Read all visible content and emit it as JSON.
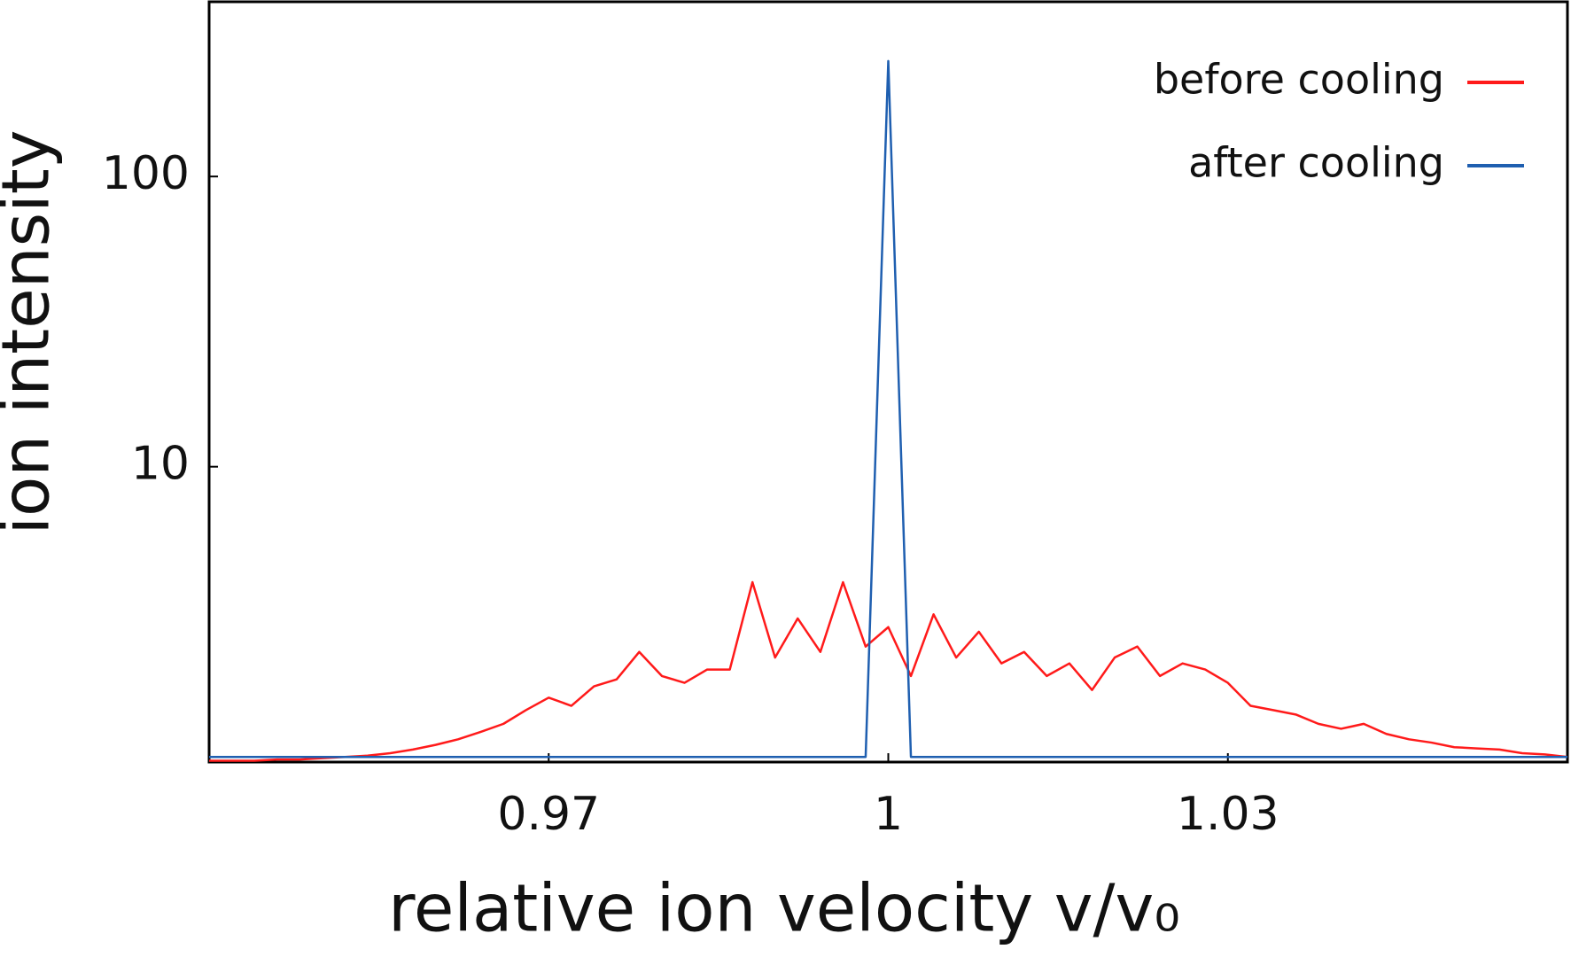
{
  "chart_data": {
    "type": "line",
    "xlabel": "relative ion velocity v/v₀",
    "ylabel": "ion intensity",
    "x": [
      0.94,
      0.942,
      0.944,
      0.946,
      0.948,
      0.95,
      0.952,
      0.954,
      0.956,
      0.958,
      0.96,
      0.962,
      0.964,
      0.966,
      0.968,
      0.97,
      0.972,
      0.974,
      0.976,
      0.978,
      0.98,
      0.982,
      0.984,
      0.986,
      0.988,
      0.99,
      0.992,
      0.994,
      0.996,
      0.998,
      1.0,
      1.002,
      1.004,
      1.006,
      1.008,
      1.01,
      1.012,
      1.014,
      1.016,
      1.018,
      1.02,
      1.022,
      1.024,
      1.026,
      1.028,
      1.03,
      1.032,
      1.034,
      1.036,
      1.038,
      1.04,
      1.042,
      1.044,
      1.046,
      1.048,
      1.05,
      1.052,
      1.054,
      1.056,
      1.058,
      1.06
    ],
    "series": [
      {
        "name": "before cooling",
        "color": "#ff1a1a",
        "values": [
          0.97,
          0.97,
          0.97,
          0.98,
          0.98,
          0.99,
          1.0,
          1.01,
          1.03,
          1.06,
          1.1,
          1.15,
          1.22,
          1.3,
          1.45,
          1.6,
          1.5,
          1.75,
          1.85,
          2.3,
          1.9,
          1.8,
          2.0,
          2.0,
          4.0,
          2.2,
          3.0,
          2.3,
          4.0,
          2.4,
          2.8,
          1.9,
          3.1,
          2.2,
          2.7,
          2.1,
          2.3,
          1.9,
          2.1,
          1.7,
          2.2,
          2.4,
          1.9,
          2.1,
          2.0,
          1.8,
          1.5,
          1.45,
          1.4,
          1.3,
          1.25,
          1.3,
          1.2,
          1.15,
          1.12,
          1.08,
          1.07,
          1.06,
          1.03,
          1.02,
          1.0
        ]
      },
      {
        "name": "after cooling",
        "color": "#1f5fb0",
        "values": [
          1.0,
          1.0,
          1.0,
          1.0,
          1.0,
          1.0,
          1.0,
          1.0,
          1.0,
          1.0,
          1.0,
          1.0,
          1.0,
          1.0,
          1.0,
          1.0,
          1.0,
          1.0,
          1.0,
          1.0,
          1.0,
          1.0,
          1.0,
          1.0,
          1.0,
          1.0,
          1.0,
          1.0,
          1.0,
          1.0,
          250,
          1.0,
          1.0,
          1.0,
          1.0,
          1.0,
          1.0,
          1.0,
          1.0,
          1.0,
          1.0,
          1.0,
          1.0,
          1.0,
          1.0,
          1.0,
          1.0,
          1.0,
          1.0,
          1.0,
          1.0,
          1.0,
          1.0,
          1.0,
          1.0,
          1.0,
          1.0,
          1.0,
          1.0,
          1.0,
          1.0
        ]
      }
    ],
    "xlim": [
      0.94,
      1.06
    ],
    "xticks": [
      0.97,
      1,
      1.03
    ],
    "ylim": [
      0.96,
      400
    ],
    "yticks": [
      10,
      100
    ],
    "log_y": true,
    "grid": false,
    "legend": "upper right"
  }
}
